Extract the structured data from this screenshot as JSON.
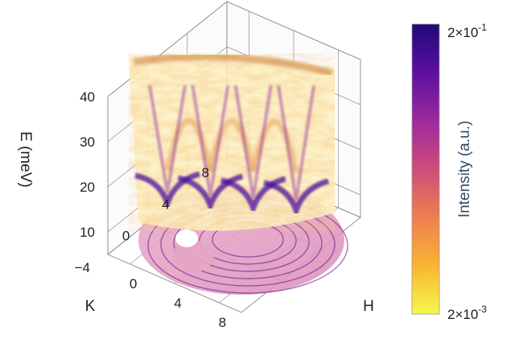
{
  "chart_data": {
    "type": "volume-3d",
    "axes": {
      "e": {
        "label": "E (meV)",
        "range": [
          5,
          40
        ],
        "ticks": [
          "10",
          "20",
          "30",
          "40"
        ]
      },
      "k": {
        "label": "K",
        "range": [
          -4,
          8
        ],
        "ticks": [
          "-4",
          "0",
          "4",
          "8"
        ]
      },
      "h": {
        "label": "H",
        "range": [
          -2,
          10
        ],
        "ticks": [
          "0",
          "4",
          "8"
        ]
      }
    },
    "colorbar": {
      "label": "Intensity (a.u.)",
      "max_label_base": "2×10",
      "max_label_exp": "-1",
      "min_label_base": "2×10",
      "min_label_exp": "-3",
      "scale": "log",
      "range": [
        0.002,
        0.2
      ],
      "colors": [
        "#f6f94a",
        "#f8b534",
        "#ef7e4f",
        "#cf4d7a",
        "#9c2a9e",
        "#5d0fa0",
        "#1e0a78"
      ]
    },
    "dispersion": {
      "minima_energy_meV": 10,
      "maxima_energy_meV": 30,
      "branches": 4,
      "top_band_meV": 37
    },
    "grid": true
  }
}
